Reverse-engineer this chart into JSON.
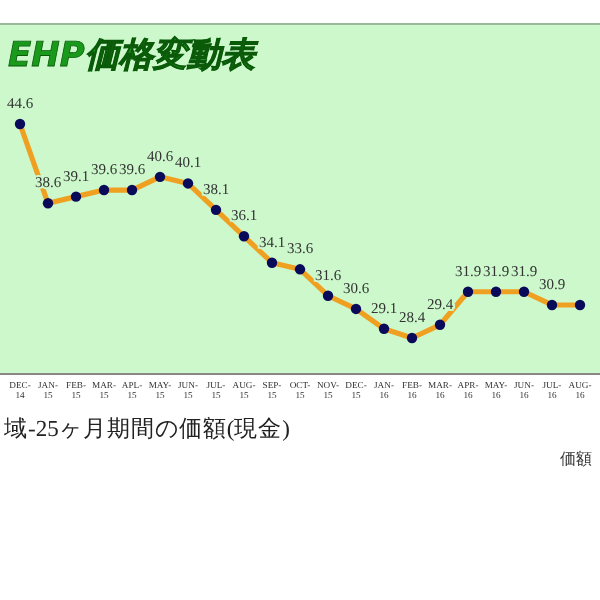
{
  "chart_data": {
    "type": "line",
    "title": "EHP価格変動表",
    "categories": [
      "DEC-14",
      "JAN-15",
      "FEB-15",
      "MAR-15",
      "APL-15",
      "MAY-15",
      "JUN-15",
      "JUL-15",
      "AUG-15",
      "SEP-15",
      "OCT-15",
      "NOV-15",
      "DEC-15",
      "JAN-16",
      "FEB-16",
      "MAR-16",
      "APR-16",
      "MAY-16",
      "JUN-16",
      "JUL-16",
      "AUG-16"
    ],
    "series": [
      {
        "color": "#f0a020",
        "values": [
          44.6,
          38.6,
          39.1,
          39.6,
          39.6,
          40.6,
          40.1,
          38.1,
          36.1,
          34.1,
          33.6,
          31.6,
          30.6,
          29.1,
          28.4,
          29.4,
          31.9,
          31.9,
          31.9,
          30.9,
          30.9
        ],
        "value_labels": [
          "44.6",
          "38.6",
          "39.1",
          "39.6",
          "39.6",
          "40.6",
          "40.1",
          "38.1",
          "36.1",
          "34.1",
          "33.6",
          "31.6",
          "30.6",
          "29.1",
          "28.4",
          "29.4",
          "31.9",
          "31.9",
          "31.9",
          "30.9",
          null
        ]
      }
    ],
    "marker": "circle",
    "line_style": "solid",
    "annotations": [
      "域-25ヶ月期間の価額(現金)",
      "価額"
    ]
  }
}
